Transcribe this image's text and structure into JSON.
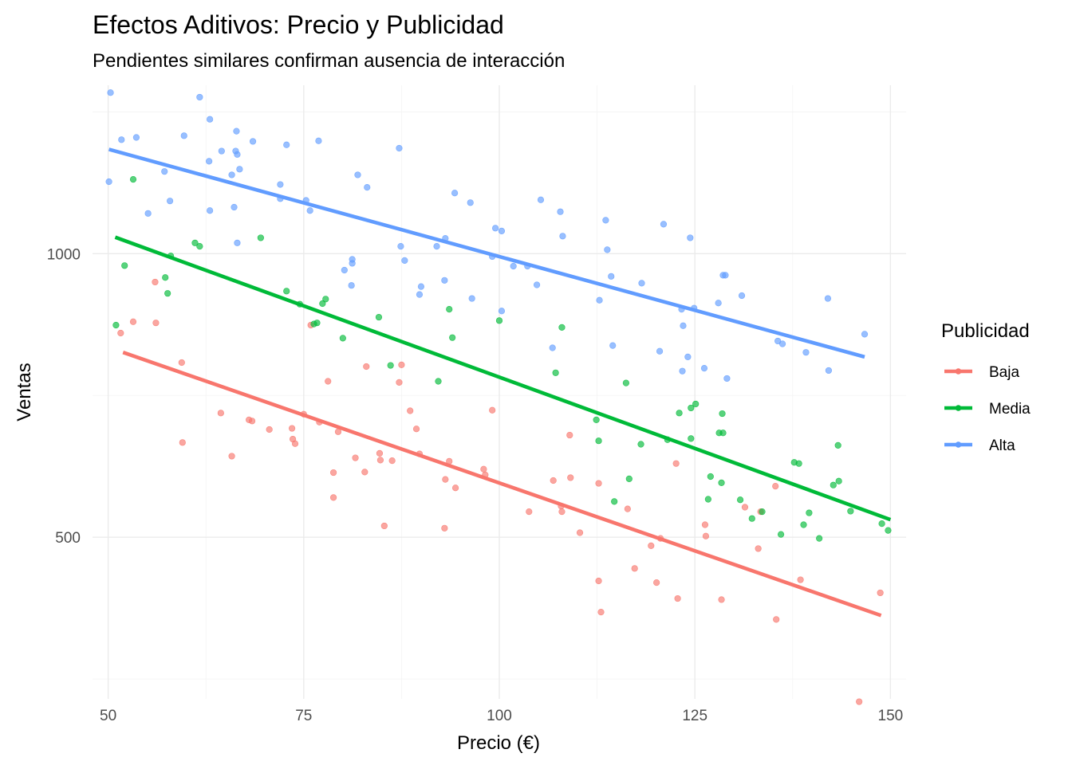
{
  "chart_data": {
    "type": "scatter",
    "title": "Efectos Aditivos: Precio y Publicidad",
    "subtitle": "Pendientes similares confirman ausencia de interacción",
    "xlabel": "Precio (€)",
    "ylabel": "Ventas",
    "xlim": [
      48,
      152
    ],
    "ylim": [
      215,
      1297
    ],
    "x_ticks": [
      50,
      75,
      100,
      125,
      150
    ],
    "y_ticks": [
      500,
      1000
    ],
    "grid": true,
    "legend": {
      "title": "Publicidad",
      "position": "right"
    },
    "series": [
      {
        "name": "Baja",
        "color": "#F8766D",
        "trend": [
          [
            51.9,
            826
          ],
          [
            148.8,
            362
          ]
        ],
        "points": [
          [
            51.6,
            860
          ],
          [
            53.2,
            880
          ],
          [
            56.0,
            950
          ],
          [
            56.1,
            878
          ],
          [
            59.4,
            808
          ],
          [
            59.5,
            667
          ],
          [
            64.4,
            719
          ],
          [
            65.8,
            643
          ],
          [
            68.0,
            707
          ],
          [
            68.4,
            705
          ],
          [
            70.6,
            690
          ],
          [
            73.5,
            692
          ],
          [
            73.6,
            673
          ],
          [
            73.9,
            665
          ],
          [
            75.0,
            717
          ],
          [
            75.9,
            874
          ],
          [
            77.0,
            703
          ],
          [
            78.1,
            775
          ],
          [
            78.8,
            614
          ],
          [
            78.8,
            570
          ],
          [
            79.4,
            686
          ],
          [
            81.6,
            640
          ],
          [
            82.8,
            615
          ],
          [
            83.0,
            801
          ],
          [
            84.7,
            648
          ],
          [
            84.8,
            636
          ],
          [
            85.3,
            520
          ],
          [
            86.3,
            635
          ],
          [
            87.2,
            773
          ],
          [
            87.5,
            804
          ],
          [
            88.6,
            723
          ],
          [
            89.4,
            691
          ],
          [
            89.8,
            647
          ],
          [
            93.0,
            516
          ],
          [
            93.1,
            602
          ],
          [
            93.6,
            634
          ],
          [
            94.4,
            587
          ],
          [
            98.0,
            620
          ],
          [
            98.2,
            610
          ],
          [
            99.1,
            724
          ],
          [
            103.8,
            545
          ],
          [
            106.9,
            600
          ],
          [
            107.9,
            555
          ],
          [
            108.0,
            545
          ],
          [
            109.0,
            680
          ],
          [
            109.1,
            605
          ],
          [
            110.3,
            508
          ],
          [
            112.7,
            595
          ],
          [
            112.7,
            423
          ],
          [
            113.0,
            368
          ],
          [
            116.4,
            550
          ],
          [
            117.3,
            445
          ],
          [
            119.4,
            485
          ],
          [
            120.1,
            420
          ],
          [
            120.6,
            498
          ],
          [
            122.6,
            630
          ],
          [
            122.8,
            392
          ],
          [
            126.3,
            522
          ],
          [
            126.4,
            502
          ],
          [
            128.4,
            390
          ],
          [
            131.4,
            553
          ],
          [
            133.1,
            480
          ],
          [
            133.4,
            545
          ],
          [
            135.3,
            590
          ],
          [
            135.4,
            355
          ],
          [
            138.5,
            425
          ],
          [
            146.0,
            210
          ],
          [
            148.7,
            402
          ]
        ]
      },
      {
        "name": "Media",
        "color": "#00BA38",
        "trend": [
          [
            50.9,
            1029
          ],
          [
            150.0,
            531
          ]
        ],
        "points": [
          [
            51.0,
            874
          ],
          [
            52.1,
            979
          ],
          [
            53.2,
            1131
          ],
          [
            57.3,
            958
          ],
          [
            57.6,
            930
          ],
          [
            58.0,
            996
          ],
          [
            61.1,
            1019
          ],
          [
            61.7,
            1013
          ],
          [
            69.5,
            1028
          ],
          [
            72.8,
            934
          ],
          [
            74.5,
            911
          ],
          [
            76.3,
            876
          ],
          [
            76.7,
            878
          ],
          [
            77.4,
            912
          ],
          [
            77.8,
            920
          ],
          [
            80.0,
            851
          ],
          [
            84.6,
            888
          ],
          [
            86.1,
            803
          ],
          [
            92.2,
            775
          ],
          [
            93.6,
            902
          ],
          [
            94.0,
            852
          ],
          [
            100.0,
            882
          ],
          [
            107.2,
            790
          ],
          [
            108.0,
            870
          ],
          [
            112.4,
            707
          ],
          [
            112.7,
            670
          ],
          [
            114.7,
            563
          ],
          [
            116.2,
            772
          ],
          [
            116.6,
            603
          ],
          [
            118.1,
            664
          ],
          [
            121.5,
            672
          ],
          [
            123.0,
            719
          ],
          [
            124.5,
            674
          ],
          [
            124.5,
            728
          ],
          [
            125.1,
            735
          ],
          [
            126.7,
            567
          ],
          [
            127.0,
            607
          ],
          [
            128.1,
            684
          ],
          [
            128.4,
            596
          ],
          [
            128.5,
            718
          ],
          [
            128.6,
            684
          ],
          [
            130.8,
            566
          ],
          [
            132.3,
            533
          ],
          [
            133.6,
            545
          ],
          [
            136.0,
            505
          ],
          [
            137.7,
            632
          ],
          [
            138.3,
            630
          ],
          [
            138.9,
            522
          ],
          [
            139.6,
            543
          ],
          [
            140.9,
            498
          ],
          [
            142.7,
            592
          ],
          [
            143.3,
            662
          ],
          [
            143.4,
            599
          ],
          [
            144.9,
            546
          ],
          [
            148.9,
            524
          ],
          [
            149.7,
            512
          ]
        ]
      },
      {
        "name": "Alta",
        "color": "#619CFF",
        "trend": [
          [
            50.1,
            1184
          ],
          [
            146.7,
            818
          ]
        ],
        "points": [
          [
            50.1,
            1127
          ],
          [
            50.3,
            1284
          ],
          [
            51.7,
            1201
          ],
          [
            53.6,
            1205
          ],
          [
            55.1,
            1071
          ],
          [
            57.2,
            1145
          ],
          [
            57.9,
            1093
          ],
          [
            59.7,
            1208
          ],
          [
            61.7,
            1276
          ],
          [
            62.9,
            1163
          ],
          [
            63.0,
            1076
          ],
          [
            63.0,
            1237
          ],
          [
            64.5,
            1181
          ],
          [
            65.8,
            1139
          ],
          [
            66.1,
            1082
          ],
          [
            66.3,
            1181
          ],
          [
            66.4,
            1216
          ],
          [
            66.5,
            1019
          ],
          [
            66.5,
            1175
          ],
          [
            66.8,
            1149
          ],
          [
            68.5,
            1198
          ],
          [
            72.0,
            1097
          ],
          [
            72.0,
            1122
          ],
          [
            72.8,
            1192
          ],
          [
            75.3,
            1094
          ],
          [
            75.8,
            1076
          ],
          [
            76.9,
            1199
          ],
          [
            80.2,
            971
          ],
          [
            81.1,
            944
          ],
          [
            81.2,
            983
          ],
          [
            81.2,
            990
          ],
          [
            81.9,
            1139
          ],
          [
            83.1,
            1117
          ],
          [
            87.2,
            1186
          ],
          [
            87.4,
            1013
          ],
          [
            87.9,
            988
          ],
          [
            89.8,
            928
          ],
          [
            90.0,
            942
          ],
          [
            92.0,
            1013
          ],
          [
            93.0,
            953
          ],
          [
            93.1,
            1027
          ],
          [
            94.3,
            1107
          ],
          [
            96.3,
            1090
          ],
          [
            96.5,
            921
          ],
          [
            99.1,
            995
          ],
          [
            99.5,
            1045
          ],
          [
            100.3,
            1040
          ],
          [
            100.3,
            899
          ],
          [
            101.8,
            978
          ],
          [
            103.6,
            978
          ],
          [
            104.8,
            945
          ],
          [
            105.3,
            1095
          ],
          [
            106.8,
            834
          ],
          [
            107.8,
            1074
          ],
          [
            108.1,
            1031
          ],
          [
            112.8,
            918
          ],
          [
            113.6,
            1059
          ],
          [
            113.8,
            1007
          ],
          [
            114.3,
            960
          ],
          [
            114.5,
            838
          ],
          [
            118.2,
            948
          ],
          [
            120.5,
            828
          ],
          [
            121.0,
            1052
          ],
          [
            123.3,
            902
          ],
          [
            123.4,
            793
          ],
          [
            123.5,
            873
          ],
          [
            124.1,
            818
          ],
          [
            124.4,
            1028
          ],
          [
            124.9,
            904
          ],
          [
            126.2,
            798
          ],
          [
            128.0,
            913
          ],
          [
            128.6,
            962
          ],
          [
            128.9,
            962
          ],
          [
            129.1,
            780
          ],
          [
            131.0,
            926
          ],
          [
            135.6,
            846
          ],
          [
            136.2,
            841
          ],
          [
            139.2,
            826
          ],
          [
            142.0,
            921
          ],
          [
            142.1,
            794
          ],
          [
            146.7,
            858
          ]
        ]
      }
    ]
  }
}
